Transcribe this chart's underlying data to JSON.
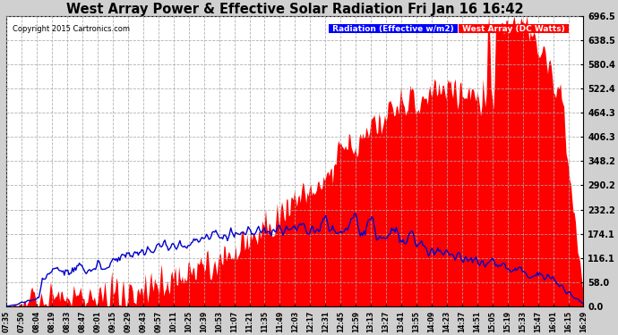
{
  "title": "West Array Power & Effective Solar Radiation Fri Jan 16 16:42",
  "copyright": "Copyright 2015 Cartronics.com",
  "legend_radiation": "Radiation (Effective w/m2)",
  "legend_west": "West Array (DC Watts)",
  "ylim": [
    0.0,
    696.5
  ],
  "yticks": [
    0.0,
    58.0,
    116.1,
    174.1,
    232.2,
    290.2,
    348.2,
    406.3,
    464.3,
    522.4,
    580.4,
    638.5,
    696.5
  ],
  "xlabel_times": [
    "07:35",
    "07:50",
    "08:04",
    "08:19",
    "08:33",
    "08:47",
    "09:01",
    "09:15",
    "09:29",
    "09:43",
    "09:57",
    "10:11",
    "10:25",
    "10:39",
    "10:53",
    "11:07",
    "11:21",
    "11:35",
    "11:49",
    "12:03",
    "12:17",
    "12:31",
    "12:45",
    "12:59",
    "13:13",
    "13:27",
    "13:41",
    "13:55",
    "14:09",
    "14:23",
    "14:37",
    "14:51",
    "15:05",
    "15:19",
    "15:33",
    "15:47",
    "16:01",
    "16:15",
    "16:29"
  ],
  "background_color": "#d0d0d0",
  "plot_bg_color": "#ffffff",
  "title_color": "#000000",
  "radiation_color": "#0000cc",
  "west_array_fill_color": "#ff0000",
  "grid_color": "#aaaaaa",
  "legend_radiation_bg": "#0000ff",
  "legend_west_bg": "#ff0000"
}
